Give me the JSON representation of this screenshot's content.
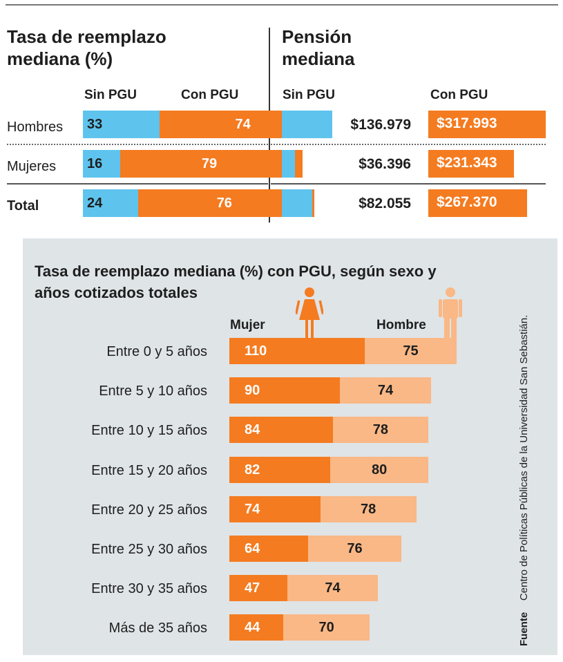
{
  "top": {
    "left_title_line1": "Tasa de reemplazo",
    "left_title_line2": "mediana (%)",
    "right_title_line1": "Pensión",
    "right_title_line2": "mediana",
    "col_sin_pgu": "Sin PGU",
    "col_con_pgu": "Con PGU",
    "rows": [
      {
        "label": "Hombres",
        "sin_pgu": "33",
        "con_pgu": "74",
        "pension_sin": "$136.979",
        "pension_con": "$317.993"
      },
      {
        "label": "Mujeres",
        "sin_pgu": "16",
        "con_pgu": "79",
        "pension_sin": "$36.396",
        "pension_con": "$231.343"
      },
      {
        "label": "Total",
        "sin_pgu": "24",
        "con_pgu": "76",
        "pension_sin": "$82.055",
        "pension_con": "$267.370"
      }
    ]
  },
  "bottom": {
    "title_line1": "Tasa de reemplazo mediana (%) con PGU, según sexo y",
    "title_line2": "años cotizados totales",
    "legend_mujer": "Mujer",
    "legend_hombre": "Hombre",
    "mujer_icon": "woman-icon",
    "hombre_icon": "man-icon"
  },
  "source": {
    "label": "Fuente",
    "text": "Centro de Políticas Públicas de la Universidad San Sebastián."
  },
  "colors": {
    "sin_pgu": "#5ec4ee",
    "con_pgu": "#f47b20",
    "mujer": "#f47b20",
    "hombre": "#f9b886",
    "panel": "#dfe4e7"
  },
  "chart_data": [
    {
      "type": "bar",
      "title": "Tasa de reemplazo mediana (%)",
      "categories": [
        "Hombres",
        "Mujeres",
        "Total"
      ],
      "series": [
        {
          "name": "Sin PGU",
          "values": [
            33,
            16,
            24
          ]
        },
        {
          "name": "Con PGU",
          "values": [
            74,
            79,
            76
          ]
        }
      ]
    },
    {
      "type": "bar",
      "title": "Pensión mediana",
      "categories": [
        "Hombres",
        "Mujeres",
        "Total"
      ],
      "series": [
        {
          "name": "Sin PGU",
          "values": [
            136979,
            36396,
            82055
          ]
        },
        {
          "name": "Con PGU",
          "values": [
            317993,
            231343,
            267370
          ]
        }
      ]
    },
    {
      "type": "bar",
      "title": "Tasa de reemplazo mediana (%) con PGU, según sexo y años cotizados totales",
      "categories": [
        "Entre 0 y 5 años",
        "Entre 5 y 10 años",
        "Entre 10 y 15 años",
        "Entre 15 y 20 años",
        "Entre 20 y 25 años",
        "Entre 25 y 30 años",
        "Entre 30 y 35 años",
        "Más de 35 años"
      ],
      "series": [
        {
          "name": "Mujer",
          "values": [
            110,
            90,
            84,
            82,
            74,
            64,
            47,
            44
          ]
        },
        {
          "name": "Hombre",
          "values": [
            75,
            74,
            78,
            80,
            78,
            76,
            74,
            70
          ]
        }
      ]
    }
  ]
}
